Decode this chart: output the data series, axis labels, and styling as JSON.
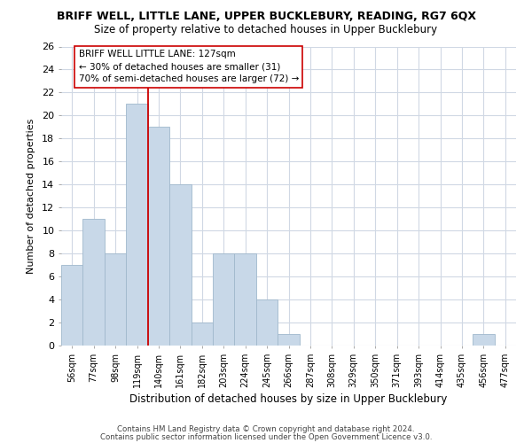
{
  "title": "BRIFF WELL, LITTLE LANE, UPPER BUCKLEBURY, READING, RG7 6QX",
  "subtitle": "Size of property relative to detached houses in Upper Bucklebury",
  "xlabel": "Distribution of detached houses by size in Upper Bucklebury",
  "ylabel": "Number of detached properties",
  "bar_labels": [
    "56sqm",
    "77sqm",
    "98sqm",
    "119sqm",
    "140sqm",
    "161sqm",
    "182sqm",
    "203sqm",
    "224sqm",
    "245sqm",
    "266sqm",
    "287sqm",
    "308sqm",
    "329sqm",
    "350sqm",
    "371sqm",
    "393sqm",
    "414sqm",
    "435sqm",
    "456sqm",
    "477sqm"
  ],
  "bar_values": [
    7,
    11,
    8,
    21,
    19,
    14,
    2,
    8,
    8,
    4,
    1,
    0,
    0,
    0,
    0,
    0,
    0,
    0,
    0,
    1,
    0
  ],
  "bar_color": "#c8d8e8",
  "bar_edge_color": "#a0b8cc",
  "vline_x_idx": 3,
  "vline_color": "#cc0000",
  "ylim": [
    0,
    26
  ],
  "yticks": [
    0,
    2,
    4,
    6,
    8,
    10,
    12,
    14,
    16,
    18,
    20,
    22,
    24,
    26
  ],
  "annotation_text": "BRIFF WELL LITTLE LANE: 127sqm\n← 30% of detached houses are smaller (31)\n70% of semi-detached houses are larger (72) →",
  "annotation_box_color": "#ffffff",
  "annotation_box_edge": "#cc0000",
  "footer1": "Contains HM Land Registry data © Crown copyright and database right 2024.",
  "footer2": "Contains public sector information licensed under the Open Government Licence v3.0.",
  "bg_color": "#ffffff",
  "grid_color": "#d0d8e4"
}
